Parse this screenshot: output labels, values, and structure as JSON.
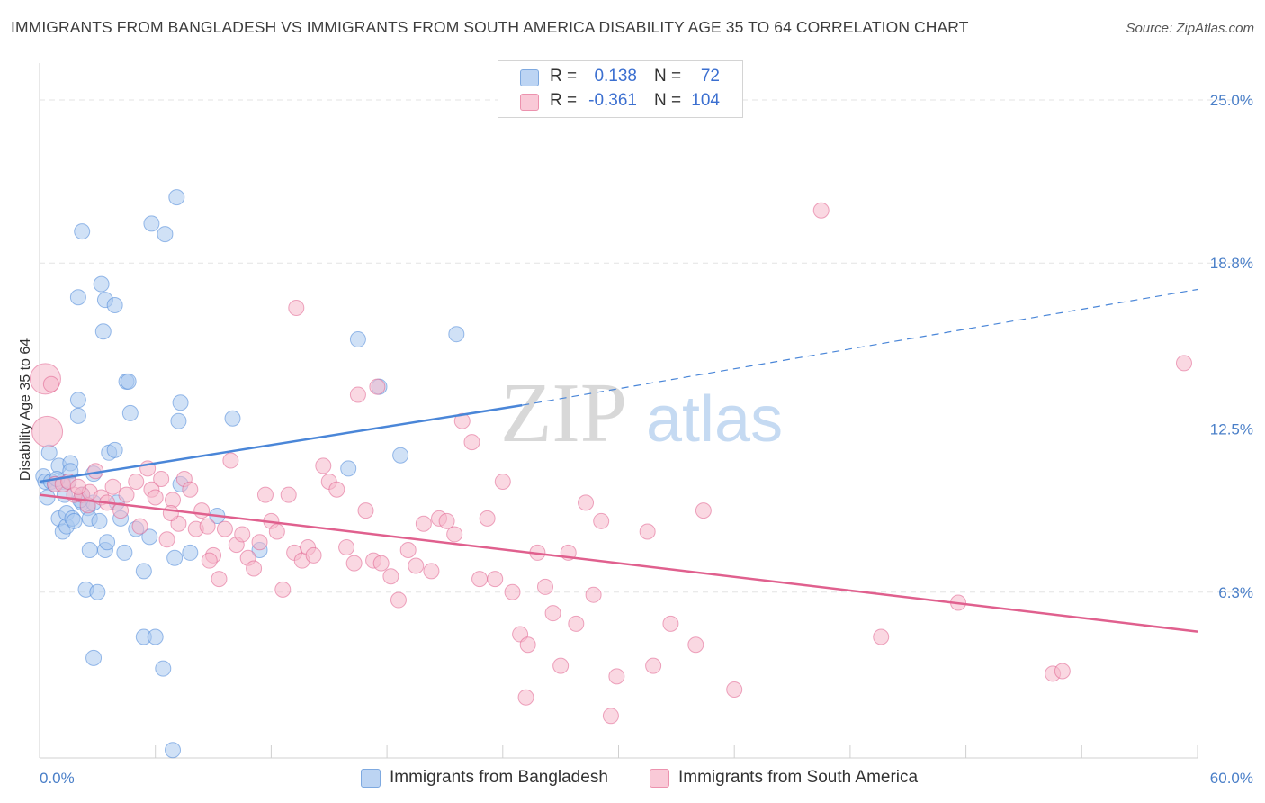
{
  "title": "IMMIGRANTS FROM BANGLADESH VS IMMIGRANTS FROM SOUTH AMERICA DISABILITY AGE 35 TO 64 CORRELATION CHART",
  "source": "Source: ZipAtlas.com",
  "watermark": {
    "zip": "ZIP",
    "atlas": "atlas"
  },
  "legend_box": {
    "rows": [
      {
        "r_label": "R =",
        "r_value": "0.138",
        "n_label": "N =",
        "n_value": "72",
        "color": "#a9c8ef"
      },
      {
        "r_label": "R =",
        "r_value": "-0.361",
        "n_label": "N =",
        "n_value": "104",
        "color": "#f6b8cb"
      }
    ]
  },
  "bottom_legend": [
    {
      "label": "Immigrants from Bangladesh",
      "color": "#a9c8ef"
    },
    {
      "label": "Immigrants from South America",
      "color": "#f6b8cb"
    }
  ],
  "chart_data": {
    "type": "scatter",
    "title": "IMMIGRANTS FROM BANGLADESH VS IMMIGRANTS FROM SOUTH AMERICA DISABILITY AGE 35 TO 64 CORRELATION CHART",
    "xlabel": "",
    "ylabel": "Disability Age 35 to 64",
    "xlim": [
      0,
      60
    ],
    "ylim": [
      0,
      26.4
    ],
    "x_ticks": [
      "0.0%",
      "60.0%"
    ],
    "y_ticks": [
      {
        "value": 25.0,
        "label": "25.0%"
      },
      {
        "value": 18.8,
        "label": "18.8%"
      },
      {
        "value": 12.5,
        "label": "12.5%"
      },
      {
        "value": 6.3,
        "label": "6.3%"
      }
    ],
    "grid": true,
    "legend_position": "top-center",
    "series": [
      {
        "name": "Immigrants from Bangladesh",
        "color": "#4a86d8",
        "fill": "#a9c8ef",
        "trend": {
          "x0": 0,
          "y0": 10.5,
          "x1": 25,
          "y1": 13.4,
          "dash_to_x": 60,
          "dash_to_y": 17.8
        },
        "points": [
          [
            0.2,
            10.7
          ],
          [
            0.3,
            10.5
          ],
          [
            0.4,
            9.9
          ],
          [
            0.6,
            10.5
          ],
          [
            0.8,
            10.4
          ],
          [
            1.0,
            11.1
          ],
          [
            1.0,
            9.1
          ],
          [
            1.2,
            10.5
          ],
          [
            1.2,
            8.6
          ],
          [
            1.4,
            9.3
          ],
          [
            1.4,
            8.8
          ],
          [
            1.5,
            10.5
          ],
          [
            1.6,
            11.2
          ],
          [
            1.6,
            10.9
          ],
          [
            1.7,
            9.1
          ],
          [
            1.8,
            9.0
          ],
          [
            2.0,
            13.0
          ],
          [
            2.0,
            17.5
          ],
          [
            2.0,
            13.6
          ],
          [
            2.2,
            9.7
          ],
          [
            2.2,
            10.0
          ],
          [
            2.2,
            20.0
          ],
          [
            2.4,
            6.4
          ],
          [
            2.5,
            9.5
          ],
          [
            2.6,
            9.1
          ],
          [
            2.6,
            7.9
          ],
          [
            2.8,
            10.8
          ],
          [
            2.8,
            9.7
          ],
          [
            2.8,
            3.8
          ],
          [
            3.0,
            6.3
          ],
          [
            3.1,
            9.0
          ],
          [
            3.2,
            18.0
          ],
          [
            3.3,
            16.2
          ],
          [
            3.4,
            17.4
          ],
          [
            3.4,
            7.9
          ],
          [
            3.5,
            8.2
          ],
          [
            3.6,
            11.6
          ],
          [
            3.9,
            17.2
          ],
          [
            3.9,
            11.7
          ],
          [
            4.0,
            9.7
          ],
          [
            4.2,
            9.1
          ],
          [
            4.4,
            7.8
          ],
          [
            4.5,
            14.3
          ],
          [
            4.6,
            14.3
          ],
          [
            4.7,
            13.1
          ],
          [
            5.0,
            8.7
          ],
          [
            5.4,
            4.6
          ],
          [
            5.4,
            7.1
          ],
          [
            5.7,
            8.4
          ],
          [
            5.8,
            20.3
          ],
          [
            6.0,
            4.6
          ],
          [
            6.4,
            3.4
          ],
          [
            6.5,
            19.9
          ],
          [
            6.9,
            0.3
          ],
          [
            7.0,
            7.6
          ],
          [
            7.1,
            21.3
          ],
          [
            7.2,
            12.8
          ],
          [
            7.3,
            13.5
          ],
          [
            7.3,
            10.4
          ],
          [
            7.8,
            7.8
          ],
          [
            9.2,
            9.2
          ],
          [
            10.0,
            12.9
          ],
          [
            11.4,
            7.9
          ],
          [
            16.5,
            15.9
          ],
          [
            16.0,
            11.0
          ],
          [
            17.6,
            14.1
          ],
          [
            18.7,
            11.5
          ],
          [
            21.6,
            16.1
          ],
          [
            0.5,
            11.6
          ],
          [
            0.9,
            10.6
          ],
          [
            1.3,
            10.0
          ],
          [
            2.1,
            9.8
          ]
        ]
      },
      {
        "name": "Immigrants from South America",
        "color": "#e0608e",
        "fill": "#f6b8cb",
        "trend": {
          "x0": 0,
          "y0": 10.0,
          "x1": 60,
          "y1": 4.8
        },
        "points": [
          [
            0.3,
            14.4
          ],
          [
            0.4,
            12.4
          ],
          [
            0.6,
            14.2
          ],
          [
            0.8,
            10.4
          ],
          [
            1.2,
            10.4
          ],
          [
            1.5,
            10.5
          ],
          [
            1.8,
            10.0
          ],
          [
            2.2,
            10.0
          ],
          [
            2.5,
            9.6
          ],
          [
            2.6,
            10.1
          ],
          [
            2.9,
            10.9
          ],
          [
            3.2,
            9.9
          ],
          [
            3.5,
            9.7
          ],
          [
            3.8,
            10.3
          ],
          [
            4.2,
            9.4
          ],
          [
            4.5,
            10.0
          ],
          [
            5.0,
            10.5
          ],
          [
            5.2,
            8.8
          ],
          [
            5.6,
            11.0
          ],
          [
            5.8,
            10.2
          ],
          [
            6.0,
            9.9
          ],
          [
            6.3,
            10.6
          ],
          [
            6.6,
            8.3
          ],
          [
            6.9,
            9.8
          ],
          [
            7.2,
            8.9
          ],
          [
            7.5,
            10.6
          ],
          [
            7.8,
            10.2
          ],
          [
            8.1,
            8.7
          ],
          [
            8.4,
            9.4
          ],
          [
            8.7,
            8.8
          ],
          [
            9.0,
            7.7
          ],
          [
            9.3,
            6.8
          ],
          [
            9.6,
            8.7
          ],
          [
            9.9,
            11.3
          ],
          [
            10.2,
            8.1
          ],
          [
            10.5,
            8.5
          ],
          [
            10.8,
            7.6
          ],
          [
            11.1,
            7.2
          ],
          [
            11.4,
            8.2
          ],
          [
            11.7,
            10.0
          ],
          [
            12.0,
            9.0
          ],
          [
            12.3,
            8.6
          ],
          [
            12.6,
            6.4
          ],
          [
            12.9,
            10.0
          ],
          [
            13.2,
            7.8
          ],
          [
            13.6,
            7.5
          ],
          [
            13.9,
            8.0
          ],
          [
            14.2,
            7.7
          ],
          [
            14.7,
            11.1
          ],
          [
            15.0,
            10.5
          ],
          [
            15.4,
            10.2
          ],
          [
            15.9,
            8.0
          ],
          [
            16.3,
            7.4
          ],
          [
            16.5,
            13.8
          ],
          [
            16.9,
            9.4
          ],
          [
            17.3,
            7.5
          ],
          [
            17.7,
            7.4
          ],
          [
            18.2,
            6.9
          ],
          [
            18.6,
            6.0
          ],
          [
            19.1,
            7.9
          ],
          [
            19.5,
            7.3
          ],
          [
            19.9,
            8.9
          ],
          [
            20.3,
            7.1
          ],
          [
            20.7,
            9.1
          ],
          [
            21.1,
            9.0
          ],
          [
            21.5,
            8.5
          ],
          [
            21.9,
            12.8
          ],
          [
            22.4,
            12.0
          ],
          [
            22.8,
            6.8
          ],
          [
            23.2,
            9.1
          ],
          [
            23.6,
            6.8
          ],
          [
            24.0,
            10.5
          ],
          [
            24.5,
            6.3
          ],
          [
            24.9,
            4.7
          ],
          [
            25.3,
            4.3
          ],
          [
            25.8,
            7.8
          ],
          [
            26.2,
            6.5
          ],
          [
            26.6,
            5.5
          ],
          [
            27.0,
            3.5
          ],
          [
            27.4,
            7.8
          ],
          [
            27.8,
            5.1
          ],
          [
            28.3,
            9.7
          ],
          [
            28.7,
            6.2
          ],
          [
            29.1,
            9.0
          ],
          [
            29.6,
            1.6
          ],
          [
            29.9,
            3.1
          ],
          [
            31.5,
            8.6
          ],
          [
            31.8,
            3.5
          ],
          [
            32.7,
            5.1
          ],
          [
            34.0,
            4.3
          ],
          [
            34.4,
            9.4
          ],
          [
            36.0,
            2.6
          ],
          [
            40.5,
            20.8
          ],
          [
            43.6,
            4.6
          ],
          [
            47.6,
            5.9
          ],
          [
            52.5,
            3.2
          ],
          [
            53.0,
            3.3
          ],
          [
            59.3,
            15.0
          ],
          [
            2.0,
            10.3
          ],
          [
            6.8,
            9.3
          ],
          [
            8.8,
            7.5
          ],
          [
            13.3,
            17.1
          ],
          [
            17.5,
            14.1
          ],
          [
            25.2,
            2.3
          ]
        ]
      }
    ]
  }
}
